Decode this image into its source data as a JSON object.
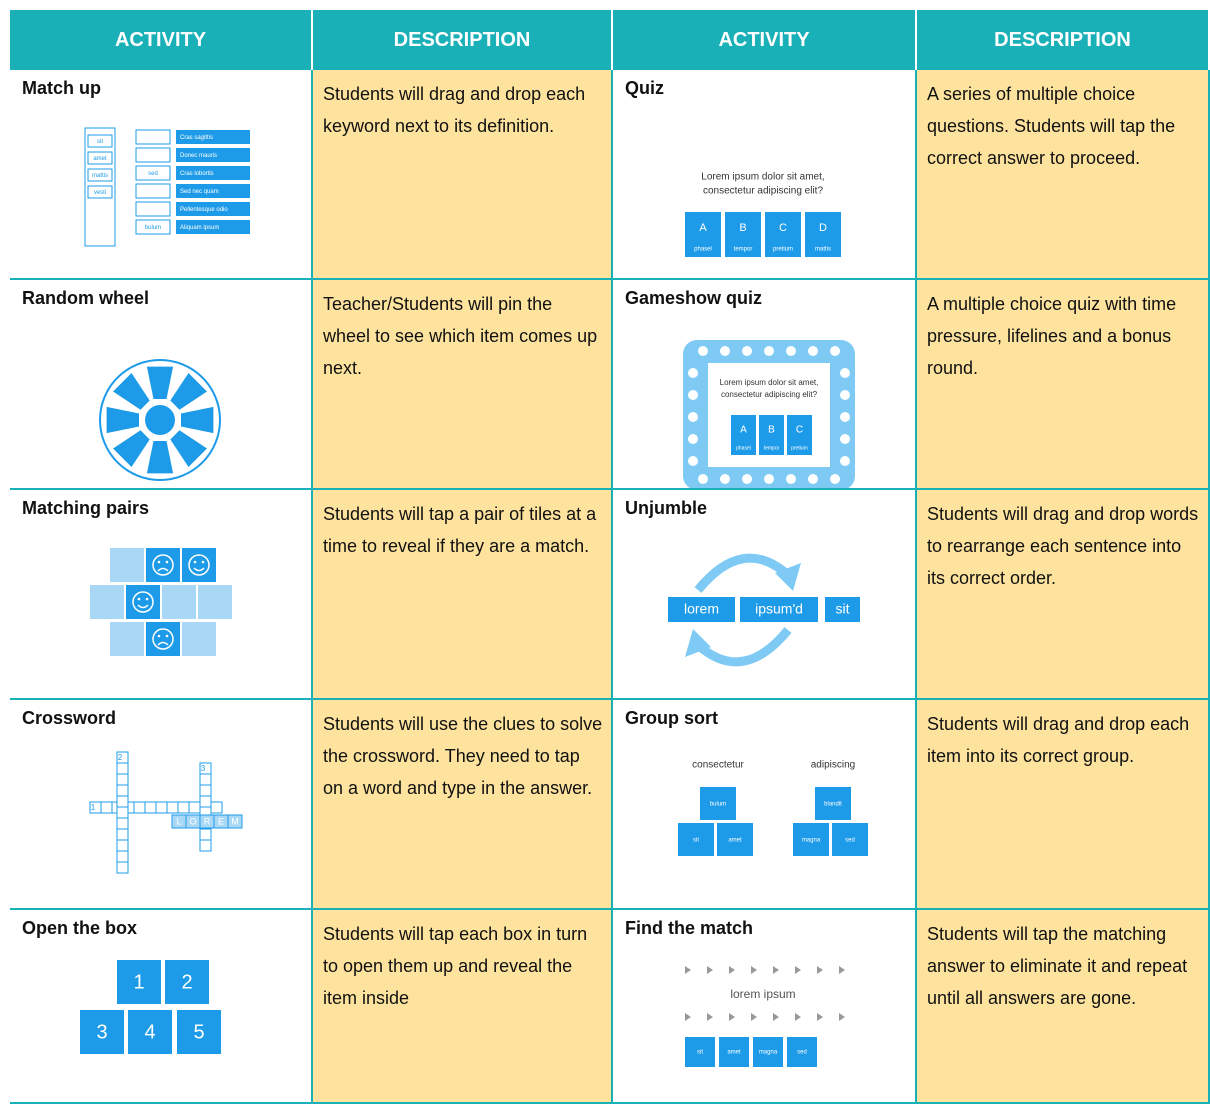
{
  "table": {
    "header": [
      "ACTIVITY",
      "DESCRIPTION",
      "ACTIVITY",
      "DESCRIPTION"
    ],
    "rows": [
      [
        {
          "title": "Match up",
          "art": {
            "keywords": [
              "sit",
              "amet",
              "mattis",
              "vesti"
            ],
            "placed": [
              "sed",
              "bulum"
            ],
            "definitions": [
              "Cras sagittis",
              "Donec mauris",
              "Cras lobortis",
              "Sed nec quam",
              "Pellentesque odio",
              "Aliquam ipsum"
            ]
          }
        },
        {
          "text": "Students will drag and drop each keyword next to its definition."
        },
        {
          "title": "Quiz",
          "art": {
            "question": [
              "Lorem ipsum dolor sit amet,",
              "consectetur adipiscing elit?"
            ],
            "options": [
              {
                "letter": "A",
                "word": "phasel"
              },
              {
                "letter": "B",
                "word": "tempor"
              },
              {
                "letter": "C",
                "word": "pretium"
              },
              {
                "letter": "D",
                "word": "mattis"
              }
            ]
          }
        },
        {
          "text": "A series of multiple choice questions. Students will tap the correct answer to proceed."
        }
      ],
      [
        {
          "title": "Random wheel"
        },
        {
          "text": "Teacher/Students will pin the wheel to see which item comes up next."
        },
        {
          "title": "Gameshow quiz",
          "art": {
            "question": [
              "Lorem ipsum dolor sit amet,",
              "consectetur adipiscing elit?"
            ],
            "options": [
              {
                "letter": "A",
                "word": "phasel"
              },
              {
                "letter": "B",
                "word": "tempor"
              },
              {
                "letter": "C",
                "word": "pretium"
              }
            ]
          }
        },
        {
          "text": "A multiple choice quiz with time pressure, lifelines and a bonus round."
        }
      ],
      [
        {
          "title": "Matching pairs"
        },
        {
          "text": "Students will tap a pair of tiles at a time to reveal if they are a match."
        },
        {
          "title": "Unjumble",
          "art": {
            "words": [
              "lorem",
              "ipsum'd",
              "sit"
            ]
          }
        },
        {
          "text": "Students will drag and drop words to rearrange each sentence into its correct order."
        }
      ],
      [
        {
          "title": "Crossword",
          "art": {
            "numbers": [
              "1",
              "2",
              "3"
            ],
            "letters": [
              "L",
              "O",
              "R",
              "E",
              "M"
            ]
          }
        },
        {
          "text": "Students will use the clues to solve the crossword. They need to tap on a word and type in the answer."
        },
        {
          "title": "Group sort",
          "art": {
            "groups": [
              {
                "name": "consectetur",
                "items": [
                  "bulum",
                  "sit",
                  "amet"
                ]
              },
              {
                "name": "adipiscing",
                "items": [
                  "blandit",
                  "magna",
                  "sed"
                ]
              }
            ]
          }
        },
        {
          "text": "Students will drag and drop each item into its correct group."
        }
      ],
      [
        {
          "title": "Open the box",
          "art": {
            "boxes": [
              "1",
              "2",
              "3",
              "4",
              "5"
            ]
          }
        },
        {
          "text": "Students will tap each box in turn to open them up and reveal the item inside"
        },
        {
          "title": "Find the match",
          "art": {
            "prompt": "lorem ipsum",
            "answers": [
              "sit",
              "amet",
              "magna",
              "sed"
            ]
          }
        },
        {
          "text": "Students will tap the matching answer to eliminate it and repeat until all answers are gone."
        }
      ]
    ]
  }
}
